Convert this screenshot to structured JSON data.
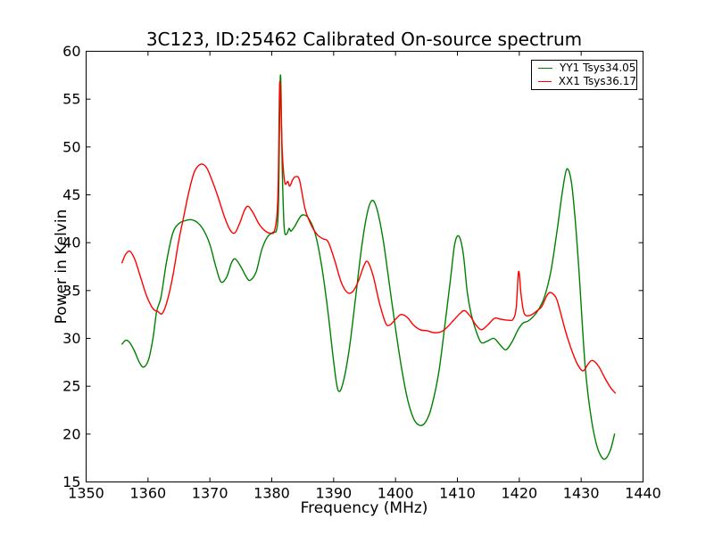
{
  "chart_data": {
    "type": "line",
    "title": "3C123, ID:25462 Calibrated On-source spectrum",
    "xlabel": "Frequency (MHz)",
    "ylabel": "Power in Kelvin",
    "xlim": [
      1350,
      1440
    ],
    "ylim": [
      15,
      60
    ],
    "xticks": [
      1350,
      1360,
      1370,
      1380,
      1390,
      1400,
      1410,
      1420,
      1430,
      1440
    ],
    "yticks": [
      15,
      20,
      25,
      30,
      35,
      40,
      45,
      50,
      55,
      60
    ],
    "grid": false,
    "background": "#ffffff",
    "axes_color": "#000000",
    "legend_position": "upper right",
    "series": [
      {
        "name": "YY1 Tsys34.05",
        "color": "#008000",
        "points": [
          [
            1355.8,
            29.4
          ],
          [
            1356.4,
            29.8
          ],
          [
            1357.0,
            29.6
          ],
          [
            1357.8,
            28.7
          ],
          [
            1358.6,
            27.5
          ],
          [
            1359.3,
            27.0
          ],
          [
            1360.1,
            27.8
          ],
          [
            1360.8,
            30.0
          ],
          [
            1361.4,
            32.8
          ],
          [
            1362.1,
            34.3
          ],
          [
            1363.0,
            38.0
          ],
          [
            1364.0,
            41.0
          ],
          [
            1365.0,
            42.0
          ],
          [
            1366.0,
            42.3
          ],
          [
            1367.0,
            42.4
          ],
          [
            1368.0,
            42.1
          ],
          [
            1369.0,
            41.3
          ],
          [
            1370.0,
            39.8
          ],
          [
            1371.0,
            37.4
          ],
          [
            1371.8,
            35.9
          ],
          [
            1372.7,
            36.4
          ],
          [
            1373.5,
            37.9
          ],
          [
            1374.1,
            38.3
          ],
          [
            1375.0,
            37.5
          ],
          [
            1376.0,
            36.3
          ],
          [
            1376.6,
            36.1
          ],
          [
            1377.5,
            37.0
          ],
          [
            1378.4,
            39.3
          ],
          [
            1379.3,
            40.6
          ],
          [
            1380.2,
            41.1
          ],
          [
            1380.8,
            41.4
          ],
          [
            1381.1,
            44.5
          ],
          [
            1381.4,
            57.5
          ],
          [
            1381.7,
            47.5
          ],
          [
            1382.0,
            41.6
          ],
          [
            1382.4,
            40.9
          ],
          [
            1382.8,
            41.5
          ],
          [
            1383.1,
            41.2
          ],
          [
            1383.7,
            41.7
          ],
          [
            1384.4,
            42.5
          ],
          [
            1385.0,
            42.9
          ],
          [
            1385.9,
            42.6
          ],
          [
            1387.0,
            41.0
          ],
          [
            1388.0,
            37.8
          ],
          [
            1389.0,
            33.2
          ],
          [
            1390.0,
            27.6
          ],
          [
            1390.7,
            24.6
          ],
          [
            1391.5,
            25.3
          ],
          [
            1392.5,
            28.8
          ],
          [
            1393.5,
            34.0
          ],
          [
            1394.5,
            39.4
          ],
          [
            1395.4,
            43.0
          ],
          [
            1396.2,
            44.4
          ],
          [
            1397.0,
            43.5
          ],
          [
            1398.0,
            40.3
          ],
          [
            1399.0,
            35.7
          ],
          [
            1400.0,
            31.0
          ],
          [
            1401.0,
            26.8
          ],
          [
            1402.0,
            23.5
          ],
          [
            1403.0,
            21.5
          ],
          [
            1404.0,
            20.9
          ],
          [
            1404.9,
            21.3
          ],
          [
            1405.8,
            22.8
          ],
          [
            1407.0,
            26.5
          ],
          [
            1408.0,
            31.5
          ],
          [
            1408.9,
            36.3
          ],
          [
            1409.5,
            39.6
          ],
          [
            1410.0,
            40.7
          ],
          [
            1410.5,
            40.3
          ],
          [
            1411.0,
            38.6
          ],
          [
            1411.6,
            34.8
          ],
          [
            1412.2,
            32.6
          ],
          [
            1412.9,
            31.0
          ],
          [
            1413.8,
            29.6
          ],
          [
            1414.8,
            29.7
          ],
          [
            1415.9,
            30.0
          ],
          [
            1416.8,
            29.4
          ],
          [
            1417.8,
            28.8
          ],
          [
            1418.8,
            29.6
          ],
          [
            1419.8,
            30.9
          ],
          [
            1420.6,
            31.6
          ],
          [
            1421.4,
            31.8
          ],
          [
            1422.3,
            32.3
          ],
          [
            1423.2,
            33.1
          ],
          [
            1424.1,
            34.4
          ],
          [
            1425.1,
            37.0
          ],
          [
            1426.1,
            41.2
          ],
          [
            1427.0,
            45.5
          ],
          [
            1427.7,
            47.7
          ],
          [
            1428.4,
            46.4
          ],
          [
            1429.0,
            42.7
          ],
          [
            1429.6,
            37.5
          ],
          [
            1430.1,
            32.3
          ],
          [
            1430.7,
            26.7
          ],
          [
            1431.5,
            22.2
          ],
          [
            1432.4,
            19.1
          ],
          [
            1433.2,
            17.7
          ],
          [
            1433.9,
            17.4
          ],
          [
            1434.7,
            18.3
          ],
          [
            1435.4,
            20.0
          ]
        ]
      },
      {
        "name": "XX1 Tsys36.17",
        "color": "#ff0000",
        "points": [
          [
            1355.8,
            37.9
          ],
          [
            1356.4,
            38.8
          ],
          [
            1357.1,
            39.1
          ],
          [
            1357.9,
            38.2
          ],
          [
            1358.8,
            36.4
          ],
          [
            1359.8,
            34.4
          ],
          [
            1360.8,
            33.1
          ],
          [
            1361.6,
            32.8
          ],
          [
            1362.3,
            32.6
          ],
          [
            1363.1,
            33.9
          ],
          [
            1364.0,
            36.5
          ],
          [
            1365.0,
            40.3
          ],
          [
            1365.8,
            42.8
          ],
          [
            1366.6,
            45.3
          ],
          [
            1367.5,
            47.4
          ],
          [
            1368.5,
            48.2
          ],
          [
            1369.4,
            47.9
          ],
          [
            1370.3,
            46.6
          ],
          [
            1371.3,
            44.8
          ],
          [
            1372.3,
            42.8
          ],
          [
            1373.2,
            41.4
          ],
          [
            1374.0,
            41.0
          ],
          [
            1374.8,
            42.0
          ],
          [
            1375.6,
            43.4
          ],
          [
            1376.2,
            43.8
          ],
          [
            1377.0,
            43.1
          ],
          [
            1377.9,
            42.0
          ],
          [
            1378.8,
            41.3
          ],
          [
            1379.7,
            41.0
          ],
          [
            1380.5,
            41.4
          ],
          [
            1381.0,
            45.0
          ],
          [
            1381.3,
            56.8
          ],
          [
            1381.7,
            49.5
          ],
          [
            1382.1,
            46.3
          ],
          [
            1382.6,
            46.4
          ],
          [
            1382.9,
            45.9
          ],
          [
            1383.4,
            46.6
          ],
          [
            1383.9,
            46.9
          ],
          [
            1384.5,
            46.5
          ],
          [
            1385.4,
            43.5
          ],
          [
            1386.4,
            41.8
          ],
          [
            1387.4,
            40.8
          ],
          [
            1388.3,
            40.4
          ],
          [
            1389.1,
            40.1
          ],
          [
            1390.1,
            38.3
          ],
          [
            1391.2,
            35.9
          ],
          [
            1392.2,
            34.8
          ],
          [
            1393.1,
            34.9
          ],
          [
            1394.0,
            36.0
          ],
          [
            1394.9,
            37.6
          ],
          [
            1395.5,
            38.0
          ],
          [
            1396.4,
            36.5
          ],
          [
            1397.4,
            33.7
          ],
          [
            1398.4,
            31.6
          ],
          [
            1399.1,
            31.4
          ],
          [
            1400.0,
            32.0
          ],
          [
            1400.9,
            32.5
          ],
          [
            1401.9,
            32.2
          ],
          [
            1402.9,
            31.4
          ],
          [
            1404.0,
            30.9
          ],
          [
            1405.1,
            30.8
          ],
          [
            1406.2,
            30.6
          ],
          [
            1407.4,
            30.7
          ],
          [
            1408.4,
            31.2
          ],
          [
            1409.4,
            31.9
          ],
          [
            1410.4,
            32.6
          ],
          [
            1411.2,
            32.9
          ],
          [
            1412.2,
            32.2
          ],
          [
            1413.0,
            31.4
          ],
          [
            1413.9,
            30.9
          ],
          [
            1414.9,
            31.4
          ],
          [
            1416.0,
            32.1
          ],
          [
            1417.0,
            32.0
          ],
          [
            1418.2,
            31.9
          ],
          [
            1419.0,
            32.0
          ],
          [
            1419.5,
            33.2
          ],
          [
            1419.9,
            37.0
          ],
          [
            1420.3,
            34.5
          ],
          [
            1420.8,
            32.6
          ],
          [
            1421.7,
            32.4
          ],
          [
            1422.7,
            32.8
          ],
          [
            1423.6,
            33.3
          ],
          [
            1424.4,
            34.4
          ],
          [
            1425.0,
            34.8
          ],
          [
            1425.9,
            34.3
          ],
          [
            1426.5,
            33.1
          ],
          [
            1427.5,
            30.7
          ],
          [
            1428.5,
            28.7
          ],
          [
            1429.4,
            27.3
          ],
          [
            1430.3,
            26.6
          ],
          [
            1431.1,
            27.3
          ],
          [
            1431.8,
            27.7
          ],
          [
            1432.8,
            27.1
          ],
          [
            1433.8,
            25.9
          ],
          [
            1434.7,
            24.9
          ],
          [
            1435.5,
            24.3
          ]
        ]
      }
    ]
  }
}
